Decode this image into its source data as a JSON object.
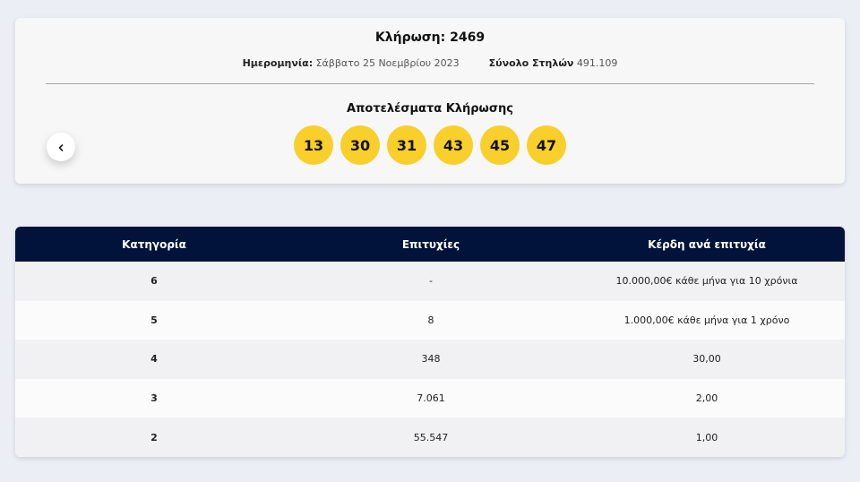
{
  "draw": {
    "title": "Κλήρωση: 2469",
    "date_label": "Ημερομηνία:",
    "date_value": "Σάββατο 25 Νοεμβρίου 2023",
    "columns_label": "Σύνολο Στηλών",
    "columns_value": "491.109",
    "results_title": "Αποτελέσματα Κλήρωσης",
    "numbers": [
      "13",
      "30",
      "31",
      "43",
      "45",
      "47"
    ],
    "ball_color": "#f9cf2b",
    "prev_icon": "chevron-left-icon"
  },
  "table": {
    "header_color": "#01133a",
    "headers": [
      "Κατηγορία",
      "Επιτυχίες",
      "Κέρδη ανά επιτυχία"
    ],
    "rows": [
      [
        "6",
        "-",
        "10.000,00€ κάθε μήνα για 10 χρόνια"
      ],
      [
        "5",
        "8",
        "1.000,00€ κάθε μήνα για 1 χρόνο"
      ],
      [
        "4",
        "348",
        "30,00"
      ],
      [
        "3",
        "7.061",
        "2,00"
      ],
      [
        "2",
        "55.547",
        "1,00"
      ]
    ]
  }
}
